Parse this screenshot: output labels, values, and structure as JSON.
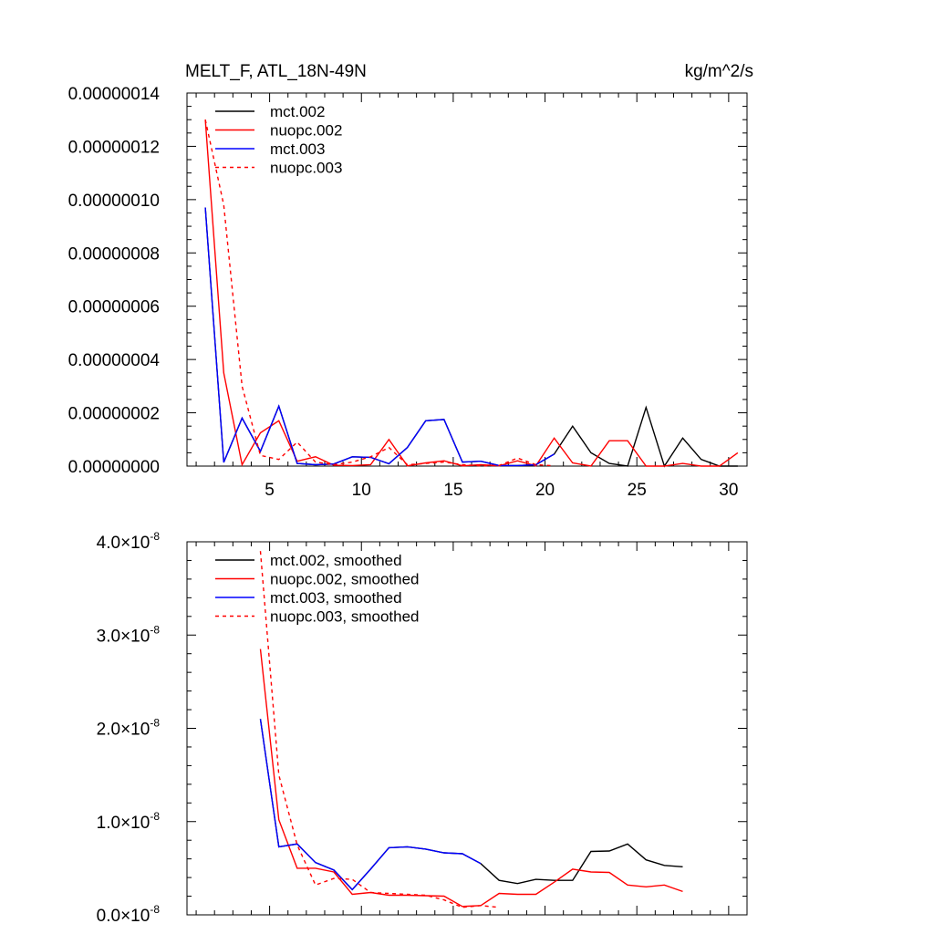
{
  "chart_data": [
    {
      "type": "line",
      "title": "MELT_F, ATL_18N-49N",
      "units": "kg/m^2/s",
      "xlabel": "",
      "ylabel": "",
      "xlim": [
        0.5,
        31
      ],
      "ylim": [
        0,
        1.4e-07
      ],
      "x_ticks": [
        5,
        10,
        15,
        20,
        25,
        30
      ],
      "x_tick_labels": [
        "5",
        "10",
        "15",
        "20",
        "25",
        "30"
      ],
      "y_ticks": [
        0,
        2e-08,
        4e-08,
        6e-08,
        8e-08,
        1e-07,
        1.2e-07,
        1.4e-07
      ],
      "y_tick_labels": [
        "0.00000000",
        "0.00000002",
        "0.00000004",
        "0.00000006",
        "0.00000008",
        "0.00000010",
        "0.00000012",
        "0.00000014"
      ],
      "legend_position": "top-left",
      "series": [
        {
          "name": "mct.002",
          "color": "#000000",
          "dash": "solid",
          "x": [
            1.5,
            2.5,
            3.5,
            4.5,
            5.5,
            6.5,
            7.5,
            8.5,
            9.5,
            10.5,
            11.5,
            12.5,
            13.5,
            14.5,
            15.5,
            16.5,
            17.5,
            18.5,
            19.5,
            20.5,
            21.5,
            22.5,
            23.5,
            24.5,
            25.5,
            26.5,
            27.5,
            28.5,
            29.5,
            30.5
          ],
          "values": [
            9.7e-08,
            1.4e-09,
            1.8e-08,
            5.5e-09,
            2.25e-08,
            1e-09,
            5e-10,
            8e-10,
            3.5e-09,
            3.3e-09,
            9e-10,
            7e-09,
            1.7e-08,
            1.75e-08,
            1.5e-09,
            1.8e-09,
            2e-10,
            2e-10,
            5e-10,
            4.5e-09,
            1.5e-08,
            5e-09,
            1e-09,
            0,
            2.2e-08,
            0,
            1.05e-08,
            2.5e-09,
            0,
            0
          ]
        },
        {
          "name": "nuopc.002",
          "color": "#ff0000",
          "dash": "solid",
          "x": [
            1.5,
            2.5,
            3.5,
            4.5,
            5.5,
            6.5,
            7.5,
            8.5,
            9.5,
            10.5,
            11.5,
            12.5,
            13.5,
            14.5,
            15.5,
            16.5,
            17.5,
            18.5,
            19.5,
            20.5,
            21.5,
            22.5,
            23.5,
            24.5,
            25.5,
            26.5,
            27.5,
            28.5,
            29.5,
            30.5
          ],
          "values": [
            1.3e-07,
            3.5e-08,
            5e-10,
            1.25e-08,
            1.7e-08,
            1.8e-09,
            3.5e-09,
            3e-10,
            2e-10,
            5e-10,
            1e-08,
            1e-10,
            1.2e-09,
            2e-09,
            1e-10,
            5e-10,
            1e-10,
            2e-09,
            1e-10,
            1.05e-08,
            1.2e-09,
            0,
            9.5e-09,
            9.5e-09,
            0,
            0,
            1e-09,
            0,
            0,
            5e-09
          ]
        },
        {
          "name": "mct.003",
          "color": "#0000ff",
          "dash": "solid",
          "x": [
            1.5,
            2.5,
            3.5,
            4.5,
            5.5,
            6.5,
            7.5,
            8.5,
            9.5,
            10.5,
            11.5,
            12.5,
            13.5,
            14.5,
            15.5,
            16.5,
            17.5,
            18.5,
            19.5,
            20.5
          ],
          "values": [
            9.7e-08,
            1.4e-09,
            1.8e-08,
            5.5e-09,
            2.25e-08,
            1e-09,
            5e-10,
            8e-10,
            3.5e-09,
            3.3e-09,
            9e-10,
            7e-09,
            1.7e-08,
            1.75e-08,
            1.5e-09,
            1.8e-09,
            2e-10,
            2e-10,
            5e-10,
            4.5e-09
          ]
        },
        {
          "name": "nuopc.003",
          "color": "#ff0000",
          "dash": "dashed",
          "x": [
            1.5,
            2.5,
            3.5,
            4.5,
            5.5,
            6.5,
            7.5,
            8.5,
            9.5,
            10.5,
            11.5,
            12.5,
            13.5,
            14.5,
            15.5,
            16.5,
            17.5,
            18.5,
            19.5,
            20.5
          ],
          "values": [
            1.3e-07,
            9.8e-08,
            3e-08,
            4e-09,
            2.5e-09,
            9e-09,
            1.5e-09,
            5e-10,
            1.5e-09,
            3.5e-09,
            7e-09,
            5e-10,
            1e-09,
            1.5e-09,
            5e-10,
            1e-10,
            2e-10,
            3e-09,
            5e-10,
            1e-10
          ]
        }
      ]
    },
    {
      "type": "line",
      "title": "",
      "xlabel": "",
      "ylabel": "",
      "xlim": [
        0.5,
        31
      ],
      "ylim": [
        0,
        4e-08
      ],
      "x_ticks": [
        5,
        10,
        15,
        20,
        25,
        30
      ],
      "y_ticks": [
        0,
        1e-08,
        2e-08,
        3e-08,
        4e-08
      ],
      "y_tick_labels": [
        {
          "mantissa": "0.0",
          "times": "×",
          "base": "10",
          "exponent": "-8"
        },
        {
          "mantissa": "1.0",
          "times": "×",
          "base": "10",
          "exponent": "-8"
        },
        {
          "mantissa": "2.0",
          "times": "×",
          "base": "10",
          "exponent": "-8"
        },
        {
          "mantissa": "3.0",
          "times": "×",
          "base": "10",
          "exponent": "-8"
        },
        {
          "mantissa": "4.0",
          "times": "×",
          "base": "10",
          "exponent": "-8"
        }
      ],
      "legend_position": "top-left",
      "series": [
        {
          "name": "mct.002, smoothed",
          "color": "#000000",
          "dash": "solid",
          "x": [
            4.5,
            5.5,
            6.5,
            7.5,
            8.5,
            9.5,
            10.5,
            11.5,
            12.5,
            13.5,
            14.5,
            15.5,
            16.5,
            17.5,
            18.5,
            19.5,
            20.5,
            21.5,
            22.5,
            23.5,
            24.5,
            25.5,
            26.5,
            27.5
          ],
          "values": [
            2.1e-08,
            7.3e-09,
            7.6e-09,
            5.6e-09,
            4.8e-09,
            2.7e-09,
            4.9e-09,
            7.2e-09,
            7.3e-09,
            7.05e-09,
            6.65e-09,
            6.55e-09,
            5.5e-09,
            3.7e-09,
            3.35e-09,
            3.8e-09,
            3.7e-09,
            3.7e-09,
            6.8e-09,
            6.85e-09,
            7.6e-09,
            5.9e-09,
            5.3e-09,
            5.15e-09
          ]
        },
        {
          "name": "nuopc.002, smoothed",
          "color": "#ff0000",
          "dash": "solid",
          "x": [
            4.5,
            5.5,
            6.5,
            7.5,
            8.5,
            9.5,
            10.5,
            11.5,
            12.5,
            13.5,
            14.5,
            15.5,
            16.5,
            17.5,
            18.5,
            19.5,
            20.5,
            21.5,
            22.5,
            23.5,
            24.5,
            25.5,
            26.5,
            27.5
          ],
          "values": [
            2.85e-08,
            1.02e-08,
            5e-09,
            5e-09,
            4.6e-09,
            2.2e-09,
            2.4e-09,
            2.1e-09,
            2.1e-09,
            2.05e-09,
            2e-09,
            9e-10,
            1e-09,
            2.3e-09,
            2.2e-09,
            2.2e-09,
            3.5e-09,
            4.9e-09,
            4.6e-09,
            4.55e-09,
            3.2e-09,
            3e-09,
            3.2e-09,
            2.5e-09
          ]
        },
        {
          "name": "mct.003, smoothed",
          "color": "#0000ff",
          "dash": "solid",
          "x": [
            4.5,
            5.5,
            6.5,
            7.5,
            8.5,
            9.5,
            10.5,
            11.5,
            12.5,
            13.5,
            14.5,
            15.5,
            16.5
          ],
          "values": [
            2.1e-08,
            7.3e-09,
            7.6e-09,
            5.6e-09,
            4.8e-09,
            2.7e-09,
            4.9e-09,
            7.2e-09,
            7.3e-09,
            7.05e-09,
            6.65e-09,
            6.55e-09,
            5.5e-09
          ]
        },
        {
          "name": "nuopc.003, smoothed",
          "color": "#ff0000",
          "dash": "dashed",
          "x": [
            4.5,
            5.5,
            6.5,
            7.5,
            8.5,
            9.5,
            10.5,
            11.5,
            12.5,
            13.5,
            14.5,
            15.5,
            16.5,
            17.5
          ],
          "values": [
            3.9e-08,
            1.5e-08,
            7.5e-09,
            3.2e-09,
            3.9e-09,
            3.8e-09,
            2.4e-09,
            2.3e-09,
            2.2e-09,
            2.1e-09,
            1.6e-09,
            8e-10,
            1e-09,
            8e-10
          ]
        }
      ]
    }
  ]
}
